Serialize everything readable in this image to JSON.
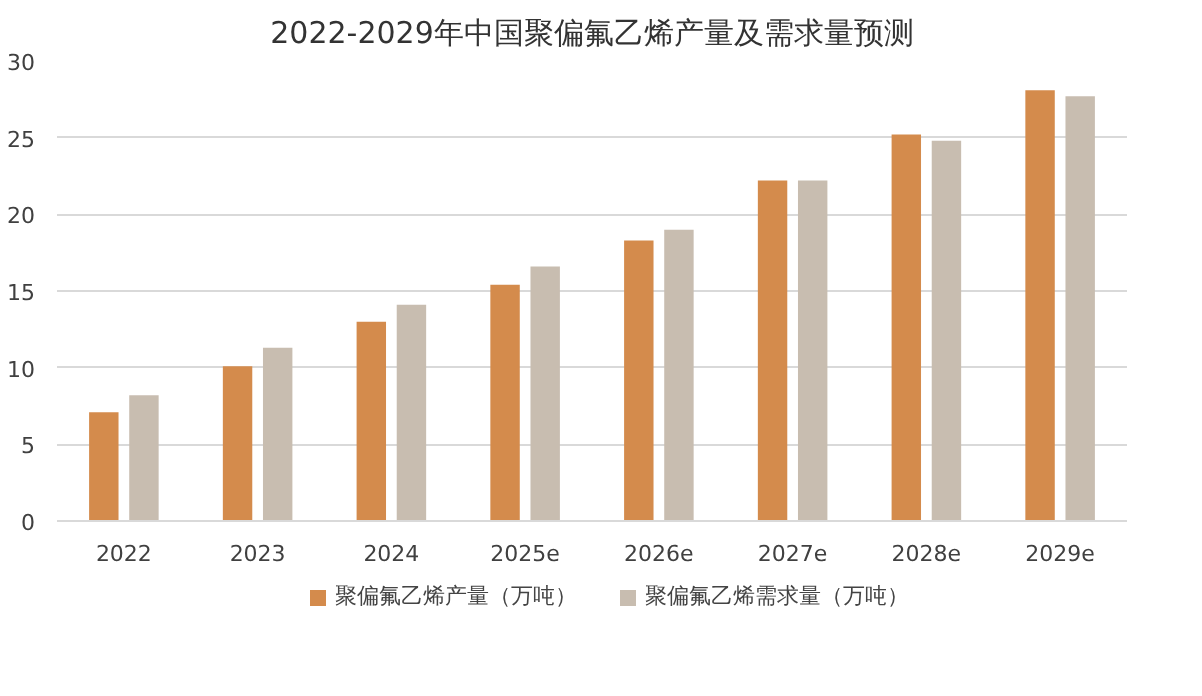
{
  "chart_data": {
    "type": "bar",
    "title": "2022-2029年中国聚偏氟乙烯产量及需求量预测",
    "categories": [
      "2022",
      "2023",
      "2024",
      "2025e",
      "2026e",
      "2027e",
      "2028e",
      "2029e"
    ],
    "series": [
      {
        "name": "聚偏氟乙烯产量（万吨）",
        "color": "#d48b4c",
        "values": [
          7.1,
          10.1,
          13.0,
          15.4,
          18.3,
          22.2,
          25.2,
          28.1
        ]
      },
      {
        "name": "聚偏氟乙烯需求量（万吨）",
        "color": "#c8bdb0",
        "values": [
          8.2,
          11.3,
          14.1,
          16.6,
          19.0,
          22.2,
          24.8,
          27.7
        ]
      }
    ],
    "ylim": [
      0,
      30
    ],
    "yticks": [
      0,
      5,
      10,
      15,
      20,
      25,
      30
    ],
    "grid": "y",
    "legend": "bottom"
  }
}
